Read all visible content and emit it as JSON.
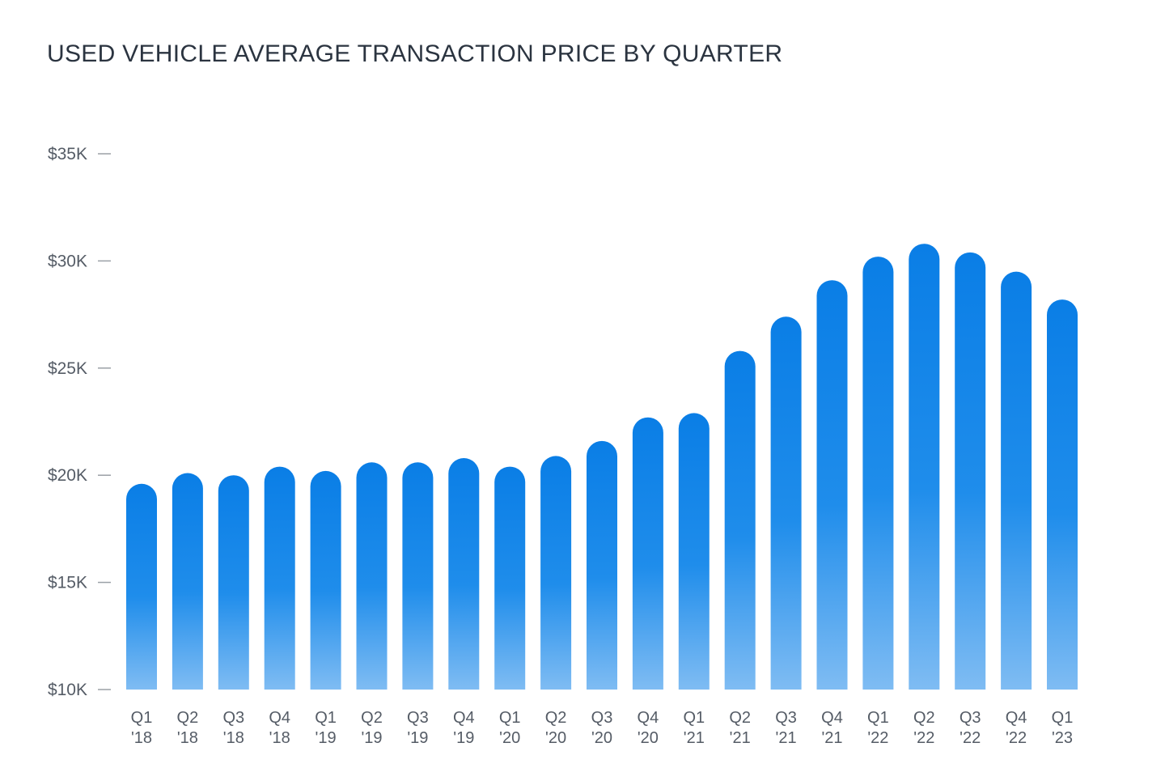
{
  "chart_data": {
    "type": "bar",
    "title": "USED VEHICLE AVERAGE TRANSACTION PRICE BY QUARTER",
    "xlabel": "",
    "ylabel": "",
    "ylim": [
      10000,
      35000
    ],
    "yticks": [
      {
        "value": 35000,
        "label": "$35K"
      },
      {
        "value": 30000,
        "label": "$30K"
      },
      {
        "value": 25000,
        "label": "$25K"
      },
      {
        "value": 20000,
        "label": "$20K"
      },
      {
        "value": 15000,
        "label": "$15K"
      },
      {
        "value": 10000,
        "label": "$10K"
      }
    ],
    "grid": false,
    "legend": "none",
    "bar_color_top": "#0a7ee6",
    "bar_color_bottom": "#7fbcf3",
    "categories": [
      {
        "q": "Q1",
        "y": "'18"
      },
      {
        "q": "Q2",
        "y": "'18"
      },
      {
        "q": "Q3",
        "y": "'18"
      },
      {
        "q": "Q4",
        "y": "'18"
      },
      {
        "q": "Q1",
        "y": "'19"
      },
      {
        "q": "Q2",
        "y": "'19"
      },
      {
        "q": "Q3",
        "y": "'19"
      },
      {
        "q": "Q4",
        "y": "'19"
      },
      {
        "q": "Q1",
        "y": "'20"
      },
      {
        "q": "Q2",
        "y": "'20"
      },
      {
        "q": "Q3",
        "y": "'20"
      },
      {
        "q": "Q4",
        "y": "'20"
      },
      {
        "q": "Q1",
        "y": "'21"
      },
      {
        "q": "Q2",
        "y": "'21"
      },
      {
        "q": "Q3",
        "y": "'21"
      },
      {
        "q": "Q4",
        "y": "'21"
      },
      {
        "q": "Q1",
        "y": "'22"
      },
      {
        "q": "Q2",
        "y": "'22"
      },
      {
        "q": "Q3",
        "y": "'22"
      },
      {
        "q": "Q4",
        "y": "'22"
      },
      {
        "q": "Q1",
        "y": "'23"
      }
    ],
    "values": [
      19600,
      20100,
      20000,
      20400,
      20200,
      20600,
      20600,
      20800,
      20400,
      20900,
      21600,
      22700,
      22900,
      25800,
      27400,
      29100,
      30200,
      30800,
      30400,
      29500,
      28200
    ]
  }
}
